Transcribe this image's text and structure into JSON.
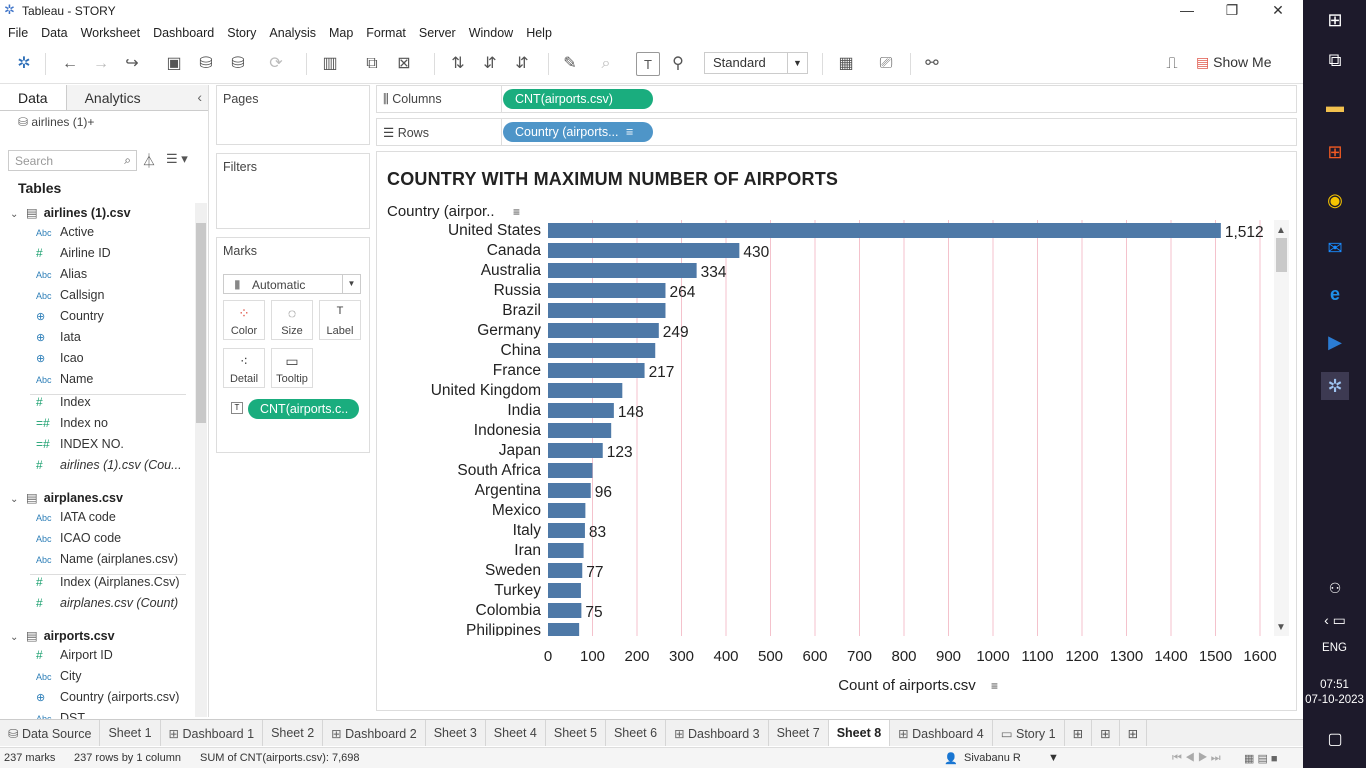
{
  "window": {
    "title": "Tableau - STORY"
  },
  "menu": [
    "File",
    "Data",
    "Worksheet",
    "Dashboard",
    "Story",
    "Analysis",
    "Map",
    "Format",
    "Server",
    "Window",
    "Help"
  ],
  "toolbar": {
    "fit_value": "Standard",
    "show_me": "Show Me"
  },
  "left_pane": {
    "tab_data": "Data",
    "tab_analytics": "Analytics",
    "datasource": "airlines (1)+",
    "search_placeholder": "Search",
    "tables_header": "Tables",
    "tables": [
      {
        "name": "airlines (1).csv",
        "fields": [
          {
            "type": "Abc",
            "name": "Active"
          },
          {
            "type": "#",
            "name": "Airline ID"
          },
          {
            "type": "Abc",
            "name": "Alias"
          },
          {
            "type": "Abc",
            "name": "Callsign"
          },
          {
            "type": "geo",
            "name": "Country"
          },
          {
            "type": "geo",
            "name": "Iata"
          },
          {
            "type": "geo",
            "name": "Icao"
          },
          {
            "type": "Abc",
            "name": "Name"
          },
          {
            "type": "#",
            "name": "Index"
          },
          {
            "type": "=#",
            "name": "Index no"
          },
          {
            "type": "=#",
            "name": "INDEX NO."
          },
          {
            "type": "#",
            "name": "airlines (1).csv (Cou..."
          }
        ]
      },
      {
        "name": "airplanes.csv",
        "fields": [
          {
            "type": "Abc",
            "name": "IATA code"
          },
          {
            "type": "Abc",
            "name": "ICAO code"
          },
          {
            "type": "Abc",
            "name": "Name (airplanes.csv)"
          },
          {
            "type": "#",
            "name": "Index (Airplanes.Csv)"
          },
          {
            "type": "#",
            "name": "airplanes.csv (Count)"
          }
        ]
      },
      {
        "name": "airports.csv",
        "fields": [
          {
            "type": "#",
            "name": "Airport ID"
          },
          {
            "type": "Abc",
            "name": "City"
          },
          {
            "type": "geo",
            "name": "Country (airports.csv)"
          },
          {
            "type": "Abc",
            "name": "DST"
          }
        ]
      }
    ]
  },
  "cards": {
    "pages": "Pages",
    "filters": "Filters",
    "marks": "Marks",
    "marks_type": "Automatic",
    "mark_buttons": [
      "Color",
      "Size",
      "Label",
      "Detail",
      "Tooltip"
    ],
    "marks_pill": "CNT(airports.c.."
  },
  "shelves": {
    "columns_label": "Columns",
    "columns_pill": "CNT(airports.csv)",
    "rows_label": "Rows",
    "rows_pill": "Country (airports..."
  },
  "chart_data": {
    "type": "bar",
    "orientation": "horizontal",
    "title": "COUNTRY WITH MAXIMUM NUMBER OF AIRPORTS",
    "ylabel": "Country (airpor..",
    "xlabel": "Count of airports.csv",
    "xlim": [
      0,
      1600
    ],
    "xticks": [
      0,
      100,
      200,
      300,
      400,
      500,
      600,
      700,
      800,
      900,
      1000,
      1100,
      1200,
      1300,
      1400,
      1500,
      1600
    ],
    "grid": true,
    "bar_color": "#4e79a7",
    "categories": [
      "United States",
      "Canada",
      "Australia",
      "Russia",
      "Brazil",
      "Germany",
      "China",
      "France",
      "United Kingdom",
      "India",
      "Indonesia",
      "Japan",
      "South Africa",
      "Argentina",
      "Mexico",
      "Italy",
      "Iran",
      "Sweden",
      "Turkey",
      "Colombia",
      "Philippines"
    ],
    "values": [
      1512,
      430,
      334,
      264,
      264,
      249,
      241,
      217,
      167,
      148,
      142,
      123,
      100,
      96,
      84,
      83,
      80,
      77,
      74,
      75,
      70
    ],
    "labels": [
      "1,512",
      "430",
      "334",
      "264",
      "",
      "249",
      "",
      "217",
      "",
      "148",
      "",
      "123",
      "",
      "96",
      "",
      "83",
      "",
      "77",
      "",
      "75",
      ""
    ]
  },
  "sheet_tabs": [
    {
      "label": "Data Source",
      "kind": "ds"
    },
    {
      "label": "Sheet 1",
      "kind": "sheet"
    },
    {
      "label": "Dashboard 1",
      "kind": "dash"
    },
    {
      "label": "Sheet 2",
      "kind": "sheet"
    },
    {
      "label": "Dashboard 2",
      "kind": "dash"
    },
    {
      "label": "Sheet 3",
      "kind": "sheet"
    },
    {
      "label": "Sheet 4",
      "kind": "sheet"
    },
    {
      "label": "Sheet 5",
      "kind": "sheet"
    },
    {
      "label": "Sheet 6",
      "kind": "sheet"
    },
    {
      "label": "Dashboard 3",
      "kind": "dash"
    },
    {
      "label": "Sheet 7",
      "kind": "sheet"
    },
    {
      "label": "Sheet 8",
      "kind": "sheet",
      "active": true
    },
    {
      "label": "Dashboard 4",
      "kind": "dash"
    },
    {
      "label": "Story 1",
      "kind": "story"
    }
  ],
  "status": {
    "marks": "237 marks",
    "rows": "237 rows by 1 column",
    "sum": "SUM of CNT(airports.csv): 7,698",
    "user": "Sivabanu R"
  },
  "taskbar": {
    "lang": "ENG",
    "time": "07:51",
    "date": "07-10-2023"
  }
}
